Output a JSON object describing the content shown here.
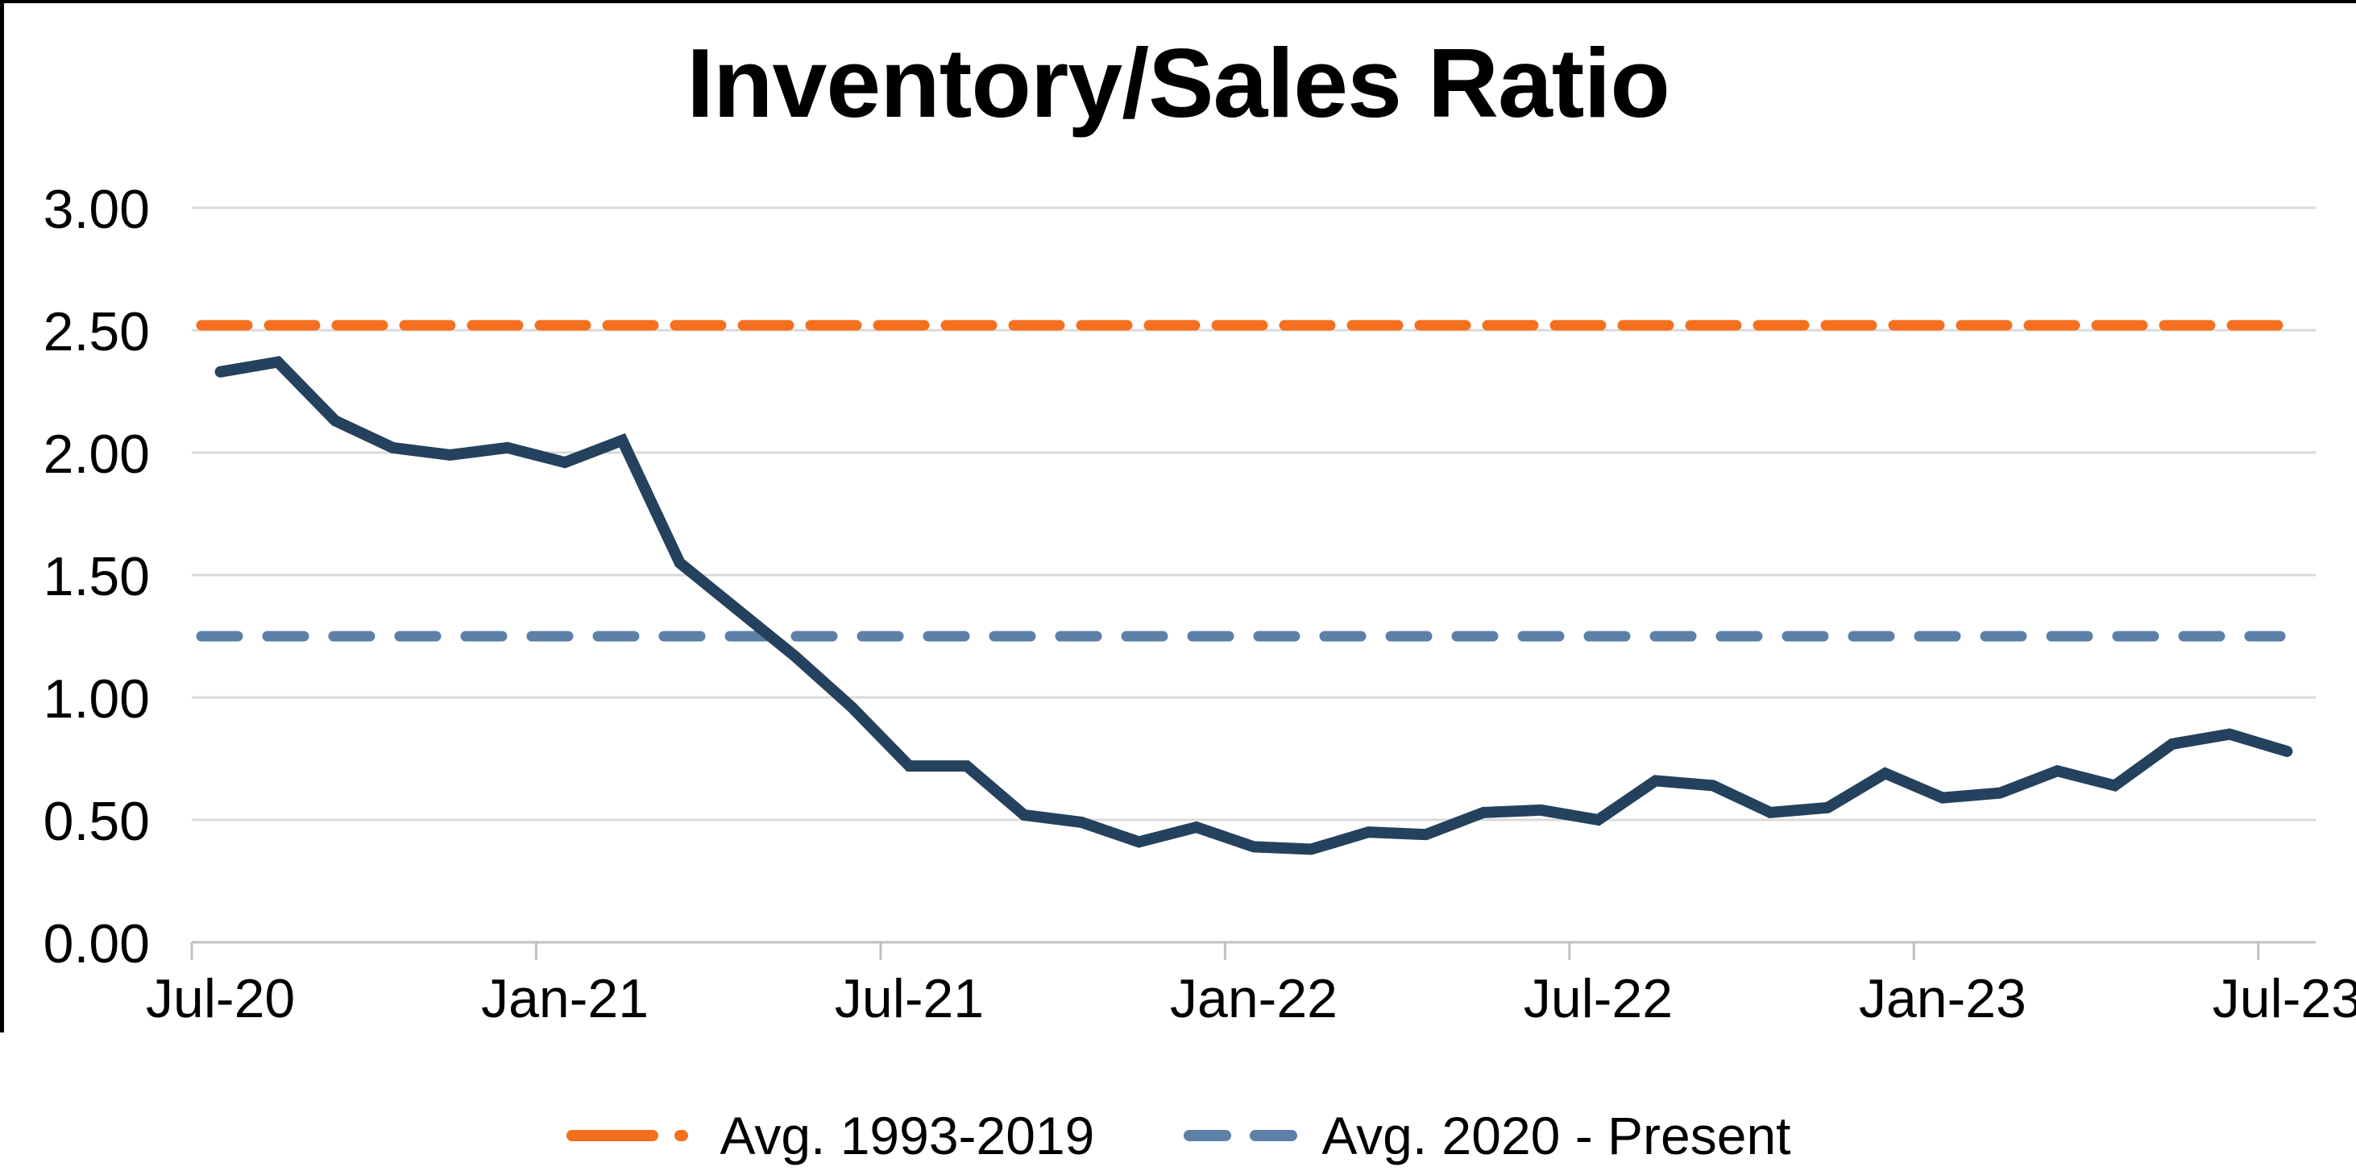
{
  "chart_data": {
    "type": "line",
    "title": "Inventory/Sales Ratio",
    "categories": [
      "Jul-20",
      "Aug-20",
      "Sep-20",
      "Oct-20",
      "Nov-20",
      "Dec-20",
      "Jan-21",
      "Feb-21",
      "Mar-21",
      "Apr-21",
      "May-21",
      "Jun-21",
      "Jul-21",
      "Aug-21",
      "Sep-21",
      "Oct-21",
      "Nov-21",
      "Dec-21",
      "Jan-22",
      "Feb-22",
      "Mar-22",
      "Apr-22",
      "May-22",
      "Jun-22",
      "Jul-22",
      "Aug-22",
      "Sep-22",
      "Oct-22",
      "Nov-22",
      "Dec-22",
      "Jan-23",
      "Feb-23",
      "Mar-23",
      "Apr-23",
      "May-23",
      "Jun-23",
      "Jul-23"
    ],
    "series": [
      {
        "name": "Inventory/Sales Ratio",
        "color": "#24425E",
        "values": [
          2.33,
          2.37,
          2.13,
          2.02,
          1.99,
          2.02,
          1.96,
          2.05,
          1.55,
          1.36,
          1.17,
          0.96,
          0.72,
          0.72,
          0.52,
          0.49,
          0.41,
          0.47,
          0.39,
          0.38,
          0.45,
          0.44,
          0.53,
          0.54,
          0.5,
          0.66,
          0.64,
          0.53,
          0.55,
          0.69,
          0.59,
          0.61,
          0.7,
          0.64,
          0.81,
          0.85,
          0.78
        ]
      }
    ],
    "reference_lines": [
      {
        "name": "Avg. 1993-2019",
        "value": 2.52,
        "color": "#F4701F",
        "dash_on": 57,
        "dash_off": 27
      },
      {
        "name": "Avg. 2020 - Present",
        "value": 1.25,
        "color": "#5C80A8",
        "dash_on": 45,
        "dash_off": 37
      }
    ],
    "y_axis": {
      "min": 0,
      "max": 3,
      "step": 0.5,
      "tick_labels": [
        "0.00",
        "0.50",
        "1.00",
        "1.50",
        "2.00",
        "2.50",
        "3.00"
      ]
    },
    "x_axis": {
      "labeled_month_indices": [
        0,
        6,
        12,
        18,
        24,
        30,
        36
      ],
      "labels": [
        "Jul-20",
        "Jan-21",
        "Jul-21",
        "Jan-22",
        "Jul-22",
        "Jan-23",
        "Jul-23"
      ]
    },
    "grid": true,
    "legend_position": "bottom",
    "colors": {
      "gridline": "#D9D9D9",
      "axis": "#C0C0C0",
      "text": "#000000",
      "background": "#FFFFFF",
      "border": "#000000"
    }
  }
}
